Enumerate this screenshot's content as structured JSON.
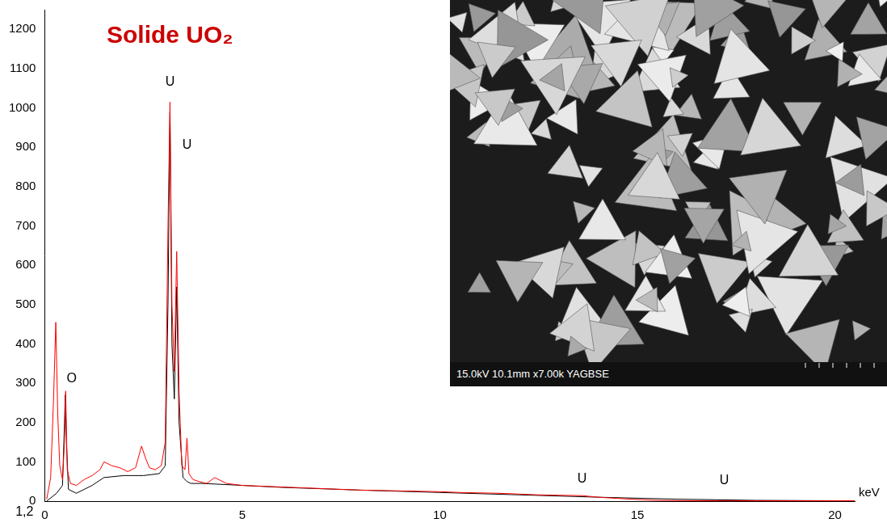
{
  "chart_data": {
    "type": "line",
    "title": "Solide UO₂",
    "x_label": "keV",
    "note": "1,2",
    "image_caption": "15.0kV 10.1mm x7.00k YAGBSE",
    "xlim": [
      0,
      20.5
    ],
    "xticks": [
      0,
      5,
      10,
      15,
      20
    ],
    "ylim": [
      0,
      1250
    ],
    "yticks": [
      0,
      100,
      200,
      300,
      400,
      500,
      600,
      700,
      800,
      900,
      1000,
      1100,
      1200
    ],
    "grid": false,
    "series": [
      {
        "color": "#ff0000",
        "x": [
          0.05,
          0.15,
          0.22,
          0.28,
          0.33,
          0.38,
          0.45,
          0.5,
          0.53,
          0.57,
          0.65,
          0.8,
          1.0,
          1.2,
          1.4,
          1.5,
          1.7,
          1.9,
          2.1,
          2.3,
          2.45,
          2.55,
          2.65,
          2.8,
          2.95,
          3.05,
          3.12,
          3.17,
          3.22,
          3.28,
          3.34,
          3.4,
          3.47,
          3.55,
          3.6,
          3.65,
          3.75,
          3.9,
          4.1,
          4.3,
          4.6,
          5.0,
          5.5,
          6,
          6.5,
          7,
          7.5,
          8,
          8.5,
          9,
          9.5,
          10,
          10.5,
          11,
          11.5,
          12,
          12.5,
          13,
          13.6,
          14,
          14.5,
          15,
          15.5,
          16,
          17,
          18,
          19,
          20,
          20.5
        ],
        "values": [
          5,
          60,
          250,
          455,
          220,
          90,
          55,
          150,
          280,
          80,
          45,
          40,
          55,
          65,
          80,
          100,
          90,
          85,
          75,
          85,
          140,
          110,
          85,
          80,
          90,
          150,
          700,
          1015,
          500,
          330,
          635,
          280,
          90,
          80,
          160,
          70,
          55,
          50,
          45,
          60,
          45,
          40,
          38,
          36,
          34,
          32,
          30,
          28,
          27,
          26,
          25,
          24,
          22,
          21,
          20,
          18,
          16,
          15,
          14,
          10,
          7,
          4,
          2,
          1,
          1,
          1,
          1,
          1,
          1
        ]
      },
      {
        "color": "#000000",
        "x": [
          0.05,
          0.3,
          0.45,
          0.5,
          0.52,
          0.55,
          0.6,
          0.8,
          1.2,
          1.5,
          2.0,
          2.5,
          2.9,
          3.05,
          3.12,
          3.17,
          3.22,
          3.28,
          3.34,
          3.4,
          3.5,
          3.6,
          3.7,
          4,
          5,
          6,
          8,
          10,
          12,
          14,
          16,
          18,
          20,
          20.5
        ],
        "values": [
          0,
          20,
          40,
          200,
          270,
          150,
          30,
          20,
          40,
          60,
          65,
          65,
          70,
          90,
          500,
          990,
          400,
          260,
          545,
          200,
          60,
          50,
          45,
          45,
          40,
          35,
          28,
          22,
          16,
          10,
          5,
          2,
          1,
          1
        ]
      }
    ],
    "annotations": [
      {
        "text": "U",
        "x": 3.17,
        "y": 1050
      },
      {
        "text": "U",
        "x": 3.6,
        "y": 890
      },
      {
        "text": "O",
        "x": 0.68,
        "y": 295
      },
      {
        "text": "U",
        "x": 13.6,
        "y": 40
      },
      {
        "text": "U",
        "x": 17.2,
        "y": 35
      }
    ]
  }
}
